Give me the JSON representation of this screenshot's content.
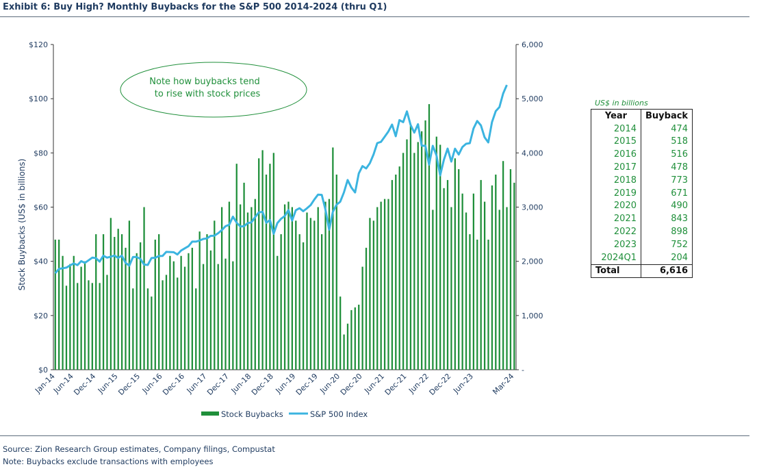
{
  "title": "Exhibit 6: Buy High? Monthly Buybacks for the S&P 500 2014-2024 (thru Q1)",
  "footer": {
    "source": "Source: Zion Research Group estimates, Company filings, Compustat",
    "note": "Note: Buybacks exclude transactions with employees"
  },
  "annotation": {
    "line1": "Note how buybacks tend",
    "line2": "to rise with stock prices"
  },
  "colors": {
    "bars": "#1f8f3a",
    "line": "#3bb4e0",
    "text": "#1e3a5f",
    "table_values": "#1f8f3a"
  },
  "table": {
    "unit": "US$ in billions",
    "headers": [
      "Year",
      "Buyback"
    ],
    "rows": [
      [
        "2014",
        "474"
      ],
      [
        "2015",
        "518"
      ],
      [
        "2016",
        "516"
      ],
      [
        "2017",
        "478"
      ],
      [
        "2018",
        "773"
      ],
      [
        "2019",
        "671"
      ],
      [
        "2020",
        "490"
      ],
      [
        "2021",
        "843"
      ],
      [
        "2022",
        "898"
      ],
      [
        "2023",
        "752"
      ],
      [
        "2024Q1",
        "204"
      ]
    ],
    "total": [
      "Total",
      "6,616"
    ]
  },
  "chart_data": {
    "type": "bar",
    "ylabel": "Stock Buybacks (US$ in billions)",
    "ylim": [
      0,
      120
    ],
    "y_ticks": [
      "$0",
      "$20",
      "$40",
      "$60",
      "$80",
      "$100",
      "$120"
    ],
    "y2lim": [
      0,
      6000
    ],
    "y2_ticks": [
      "-",
      "1,000",
      "2,000",
      "3,000",
      "4,000",
      "5,000",
      "6,000"
    ],
    "x_ticks": [
      "Jan-14",
      "Jun-14",
      "Dec-14",
      "Jun-15",
      "Dec-15",
      "Jun-16",
      "Dec-16",
      "Jun-17",
      "Dec-17",
      "Jun-18",
      "Dec-18",
      "Jun-19",
      "Dec-19",
      "Jun-20",
      "Dec-20",
      "Jun-21",
      "Dec-21",
      "Jun-22",
      "Dec-22",
      "Jun-23",
      "Mar-24"
    ],
    "legend": [
      "Stock Buybacks",
      "S&P 500 Index"
    ],
    "legend_position": "bottom",
    "series": [
      {
        "name": "Stock Buybacks",
        "type": "bar",
        "values": [
          48,
          48,
          42,
          31,
          39,
          42,
          32,
          38,
          40,
          33,
          32,
          50,
          32,
          50,
          35,
          56,
          49,
          52,
          50,
          45,
          55,
          30,
          43,
          47,
          60,
          30,
          27,
          48,
          50,
          33,
          35,
          42,
          40,
          34,
          42,
          38,
          43,
          45,
          30,
          51,
          39,
          50,
          44,
          55,
          39,
          60,
          41,
          62,
          40,
          76,
          61,
          69,
          58,
          60,
          63,
          78,
          81,
          72,
          76,
          80,
          42,
          50,
          61,
          62,
          60,
          55,
          50,
          47,
          58,
          56,
          55,
          60,
          50,
          62,
          63,
          82,
          72,
          27,
          13,
          17,
          22,
          23,
          24,
          38,
          45,
          56,
          55,
          60,
          62,
          63,
          63,
          70,
          72,
          75,
          80,
          85,
          90,
          80,
          84,
          88,
          92,
          98,
          59,
          86,
          83,
          67,
          70,
          60,
          78,
          74,
          65,
          58,
          50,
          65,
          48,
          70,
          62,
          48,
          68,
          72,
          59,
          77,
          60,
          74,
          69
        ]
      },
      {
        "name": "S&P 500 Index",
        "type": "line",
        "values": [
          1780,
          1859,
          1872,
          1884,
          1924,
          1960,
          1930,
          2003,
          1972,
          2018,
          2068,
          2059,
          1995,
          2105,
          2068,
          2086,
          2107,
          2063,
          2104,
          1972,
          1920,
          2079,
          2080,
          2044,
          1940,
          1932,
          2060,
          2065,
          2097,
          2099,
          2174,
          2171,
          2168,
          2126,
          2199,
          2239,
          2279,
          2364,
          2363,
          2384,
          2412,
          2423,
          2470,
          2472,
          2519,
          2575,
          2648,
          2674,
          2824,
          2714,
          2641,
          2648,
          2705,
          2718,
          2816,
          2902,
          2914,
          2711,
          2760,
          2507,
          2704,
          2784,
          2834,
          2946,
          2752,
          2942,
          2980,
          2926,
          2977,
          3038,
          3141,
          3231,
          3226,
          2954,
          2585,
          2912,
          3044,
          3100,
          3271,
          3500,
          3363,
          3270,
          3622,
          3756,
          3714,
          3811,
          3973,
          4181,
          4204,
          4298,
          4395,
          4523,
          4308,
          4605,
          4567,
          4766,
          4516,
          4374,
          4530,
          4132,
          4132,
          3785,
          4130,
          3955,
          3586,
          3872,
          4080,
          3840,
          4077,
          3970,
          4109,
          4169,
          4180,
          4450,
          4589,
          4508,
          4288,
          4194,
          4568,
          4770,
          4846,
          5096,
          5254
        ]
      }
    ]
  }
}
